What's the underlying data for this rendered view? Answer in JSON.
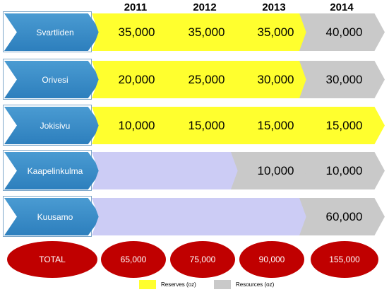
{
  "years": [
    "2011",
    "2012",
    "2013",
    "2014"
  ],
  "rows": [
    {
      "name": "Svartliden",
      "cells": [
        {
          "value": "35,000",
          "type": "reserve"
        },
        {
          "value": "35,000",
          "type": "reserve"
        },
        {
          "value": "35,000",
          "type": "reserve"
        },
        {
          "value": "40,000",
          "type": "resource"
        }
      ]
    },
    {
      "name": "Orivesi",
      "cells": [
        {
          "value": "20,000",
          "type": "reserve"
        },
        {
          "value": "25,000",
          "type": "reserve"
        },
        {
          "value": "30,000",
          "type": "reserve"
        },
        {
          "value": "30,000",
          "type": "resource"
        }
      ]
    },
    {
      "name": "Jokisivu",
      "cells": [
        {
          "value": "10,000",
          "type": "reserve"
        },
        {
          "value": "15,000",
          "type": "reserve"
        },
        {
          "value": "15,000",
          "type": "reserve"
        },
        {
          "value": "15,000",
          "type": "reserve"
        }
      ]
    },
    {
      "name": "Kaapelinkulma",
      "cells": [
        {
          "value": "",
          "type": "empty"
        },
        {
          "value": "",
          "type": "empty"
        },
        {
          "value": "10,000",
          "type": "resource"
        },
        {
          "value": "10,000",
          "type": "resource"
        }
      ]
    },
    {
      "name": "Kuusamo",
      "cells": [
        {
          "value": "",
          "type": "empty"
        },
        {
          "value": "",
          "type": "empty"
        },
        {
          "value": "",
          "type": "empty"
        },
        {
          "value": "60,000",
          "type": "resource"
        }
      ]
    }
  ],
  "totals": {
    "label": "TOTAL",
    "values": [
      "65,000",
      "75,000",
      "90,000",
      "155,000"
    ]
  },
  "legend": [
    {
      "label": "Reserves (oz)",
      "color": "#ffff2e"
    },
    {
      "label": "Resources (oz)",
      "color": "#c9c9c9"
    }
  ],
  "colors": {
    "reserve": "#ffff2e",
    "resource": "#c9c9c9",
    "empty": "#ccccf5",
    "name_arrow": "#2d7fbd",
    "total_oval": "#c00000"
  }
}
